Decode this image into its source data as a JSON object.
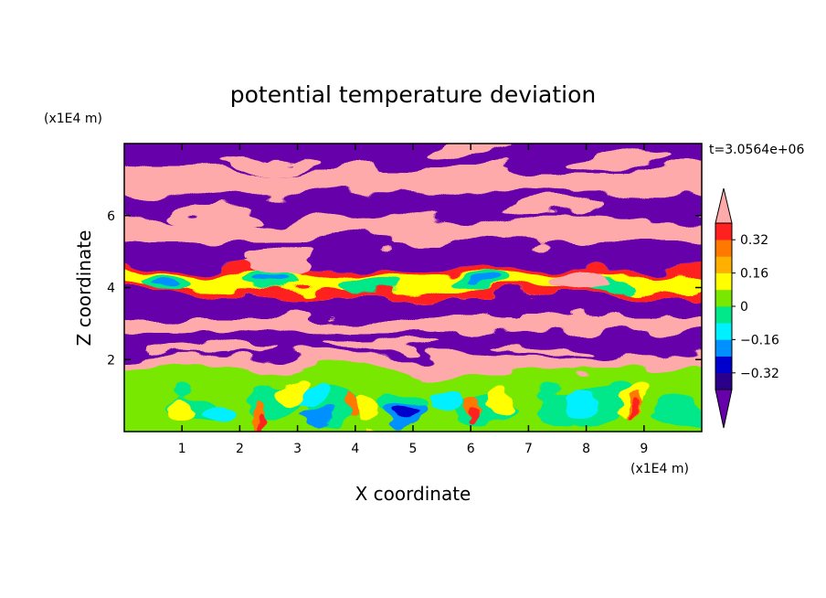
{
  "chart_data": {
    "type": "heatmap",
    "title": "potential temperature deviation",
    "xlabel": "X coordinate",
    "ylabel": "Z coordinate",
    "x_unit": "(x1E4 m)",
    "y_unit": "(x1E4 m)",
    "time_label": "t=3.0564e+06",
    "xlim": [
      0,
      10
    ],
    "ylim": [
      0,
      8
    ],
    "x_ticks": [
      "1",
      "2",
      "3",
      "4",
      "5",
      "6",
      "7",
      "8",
      "9"
    ],
    "y_ticks": [
      "2",
      "4",
      "6"
    ],
    "colorbar": {
      "labels": [
        "0.32",
        "0.16",
        "0",
        "−0.16",
        "−0.32"
      ],
      "levels": [
        -0.4,
        -0.32,
        -0.24,
        -0.16,
        -0.08,
        0,
        0.08,
        0.16,
        0.24,
        0.32,
        0.4
      ],
      "colors": [
        "#6600aa",
        "#2a008a",
        "#0000cd",
        "#0090ff",
        "#00f0ff",
        "#00e88a",
        "#78e800",
        "#ffff00",
        "#ffb000",
        "#ff7800",
        "#ff2020",
        "#ffaaaa"
      ]
    }
  }
}
